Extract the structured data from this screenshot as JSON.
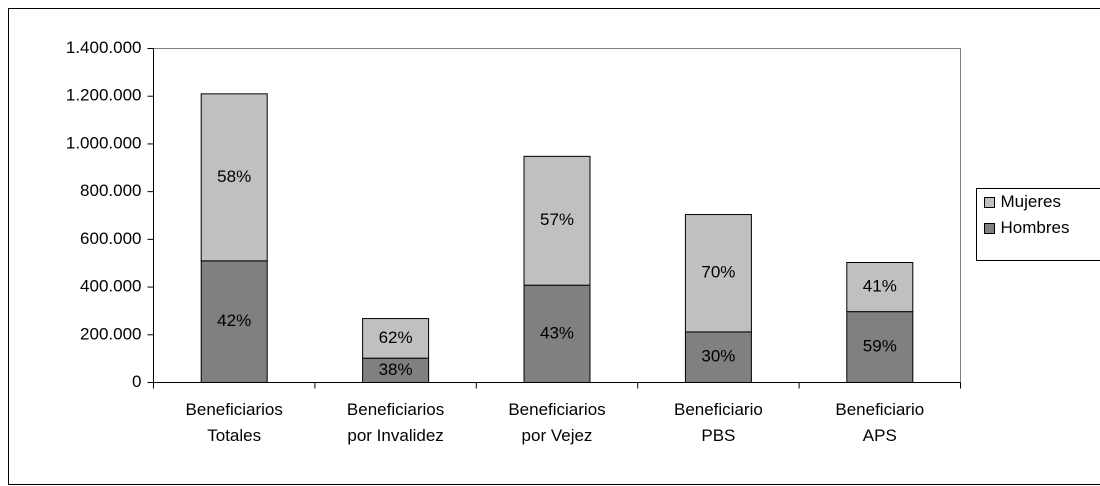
{
  "chart_data": {
    "type": "stacked_bar",
    "categories": [
      [
        "Beneficiarios",
        "Totales"
      ],
      [
        "Beneficiarios",
        "por Invalidez"
      ],
      [
        "Beneficiarios",
        "por Vejez"
      ],
      [
        "Beneficiario",
        "PBS"
      ],
      [
        "Beneficiario",
        "APS"
      ]
    ],
    "series": [
      {
        "name": "Hombres",
        "color": "#808080",
        "values": [
          510000,
          102000,
          408000,
          212000,
          297000
        ],
        "data_labels": [
          "42%",
          "38%",
          "43%",
          "30%",
          "59%"
        ]
      },
      {
        "name": "Mujeres",
        "color": "#c0c0c0",
        "values": [
          700000,
          166000,
          540000,
          492000,
          206000
        ],
        "data_labels": [
          "58%",
          "62%",
          "57%",
          "70%",
          "41%"
        ]
      }
    ],
    "ylim": [
      0,
      1400000
    ],
    "yticks": [
      0,
      {
        "value": 200000,
        "label": "200.000"
      },
      {
        "value": 400000,
        "label": "400.000"
      },
      {
        "value": 600000,
        "label": "600.000"
      },
      {
        "value": 800000,
        "label": "800.000"
      },
      {
        "value": 1000000,
        "label": "1.000.000"
      },
      {
        "value": 1200000,
        "label": "1.200.000"
      },
      {
        "value": 1400000,
        "label": "1.400.000"
      }
    ],
    "grid": false,
    "legend": "right"
  }
}
